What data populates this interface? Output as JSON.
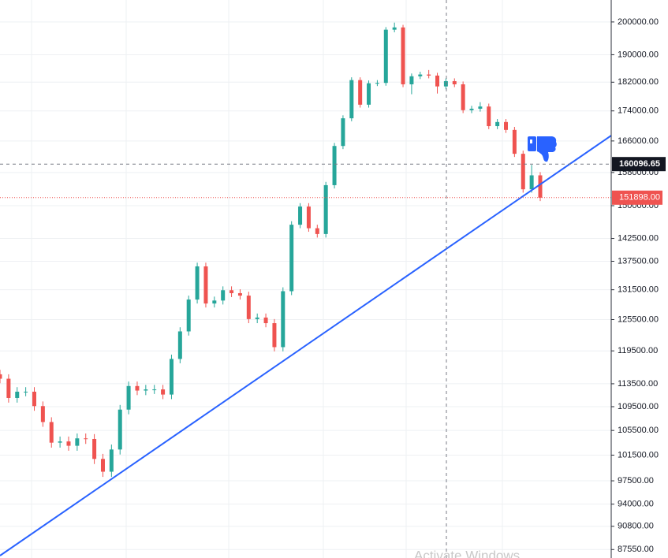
{
  "chart_data": {
    "type": "candlestick",
    "log_scale": true,
    "grid": true,
    "up_color": "#26a69a",
    "down_color": "#ef5350",
    "ylim": [
      86400,
      207000
    ],
    "yticks": [
      {
        "value": 200000,
        "label": "200000.00"
      },
      {
        "value": 190000,
        "label": "190000.00"
      },
      {
        "value": 182000,
        "label": "182000.00"
      },
      {
        "value": 174000,
        "label": "174000.00"
      },
      {
        "value": 166000,
        "label": "166000.00"
      },
      {
        "value": 158000,
        "label": "158000.00"
      },
      {
        "value": 150000,
        "label": "150000.00"
      },
      {
        "value": 142500,
        "label": "142500.00"
      },
      {
        "value": 137500,
        "label": "137500.00"
      },
      {
        "value": 131500,
        "label": "131500.00"
      },
      {
        "value": 125500,
        "label": "125500.00"
      },
      {
        "value": 119500,
        "label": "119500.00"
      },
      {
        "value": 113500,
        "label": "113500.00"
      },
      {
        "value": 109500,
        "label": "109500.00"
      },
      {
        "value": 105500,
        "label": "105500.00"
      },
      {
        "value": 101500,
        "label": "101500.00"
      },
      {
        "value": 97500,
        "label": "97500.00"
      },
      {
        "value": 94000,
        "label": "94000.00"
      },
      {
        "value": 90800,
        "label": "90800.00"
      },
      {
        "value": 87550,
        "label": "87550.00"
      }
    ],
    "crosshair_price": {
      "value": 160096.65,
      "label": "160096.65"
    },
    "last_price": {
      "value": 151898,
      "label": "151898.00"
    },
    "watermark": "Activate Windows",
    "open": [
      115200,
      114400,
      111000,
      112100,
      112100,
      109600,
      106900,
      103500,
      103700,
      103000,
      104200,
      104100,
      100900,
      98900,
      102400,
      109000,
      113100,
      112300,
      112500,
      112500,
      111600,
      118000,
      123200,
      129500,
      136400,
      128700,
      129300,
      131400,
      130800,
      130300,
      125600,
      125900,
      124800,
      120200,
      131200,
      145600,
      149800,
      144800,
      143500,
      154900,
      164700,
      172000,
      182600,
      175700,
      181700,
      181800,
      197600,
      198300,
      181400,
      183700,
      184200,
      183900,
      180800,
      182300,
      181400,
      174200,
      174600,
      175200,
      169900,
      171000,
      168900,
      162700,
      153900,
      157300
    ],
    "high": [
      116000,
      115200,
      112900,
      112900,
      112900,
      110400,
      107700,
      104500,
      104500,
      105000,
      105000,
      104900,
      101700,
      103200,
      109800,
      113900,
      113900,
      113300,
      113300,
      113300,
      118800,
      124000,
      130300,
      137200,
      137200,
      130100,
      132200,
      132200,
      131600,
      131100,
      126700,
      126700,
      125600,
      132000,
      146400,
      150600,
      150600,
      145600,
      155700,
      165500,
      172800,
      183400,
      183400,
      182500,
      182600,
      198400,
      199800,
      199100,
      184500,
      185000,
      185500,
      184700,
      183100,
      183100,
      182200,
      175400,
      176400,
      176000,
      171800,
      171800,
      169700,
      163500,
      159900,
      158100
    ],
    "low": [
      113600,
      110200,
      110200,
      111300,
      108800,
      106100,
      102700,
      102700,
      102200,
      102200,
      103300,
      100100,
      98100,
      98100,
      101600,
      108200,
      111500,
      111500,
      111700,
      110800,
      110800,
      117200,
      122400,
      128700,
      127900,
      127900,
      128500,
      130000,
      129500,
      124800,
      124800,
      124000,
      119400,
      119400,
      130400,
      144800,
      144000,
      142700,
      142700,
      154100,
      163900,
      171200,
      174900,
      174900,
      180900,
      181000,
      196800,
      180600,
      178600,
      182900,
      183100,
      178800,
      180000,
      180600,
      173400,
      173400,
      173800,
      169100,
      169100,
      168100,
      161900,
      153100,
      153100,
      151100
    ],
    "close": [
      114400,
      111000,
      112100,
      112100,
      109600,
      106900,
      103500,
      103700,
      103000,
      104200,
      104100,
      100900,
      98900,
      102400,
      109000,
      113100,
      112300,
      112500,
      112500,
      111600,
      118000,
      123200,
      129500,
      136400,
      128700,
      129300,
      131400,
      130800,
      130300,
      125600,
      125900,
      124800,
      120200,
      131200,
      145600,
      149800,
      144800,
      143500,
      154900,
      164700,
      172000,
      182600,
      175700,
      181700,
      181800,
      197600,
      198300,
      181400,
      183700,
      184200,
      183900,
      180800,
      182300,
      181400,
      174200,
      174600,
      175200,
      169900,
      171000,
      168900,
      162700,
      153900,
      157300,
      151898
    ]
  }
}
